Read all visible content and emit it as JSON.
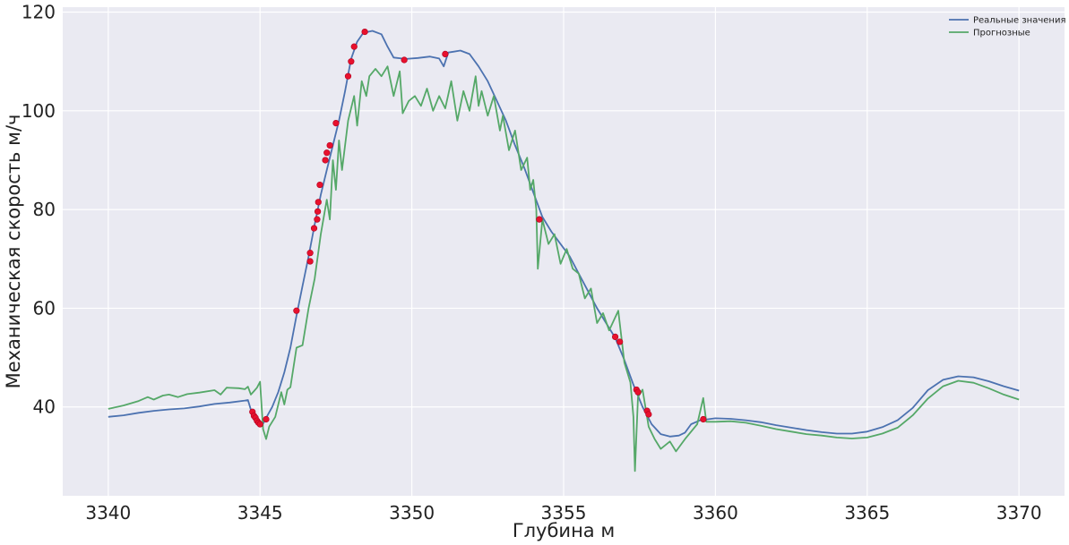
{
  "chart_data": {
    "type": "line",
    "title": "",
    "xlabel": "Глубина м",
    "ylabel": "Механическая скорость м/ч",
    "xlim": [
      3338.5,
      3371.5
    ],
    "ylim": [
      22,
      121
    ],
    "xticks": [
      3340,
      3345,
      3350,
      3355,
      3360,
      3365,
      3370
    ],
    "yticks": [
      40,
      60,
      80,
      100,
      120
    ],
    "grid": true,
    "legend": "top-right",
    "series": [
      {
        "name": "Реальные значения",
        "color": "#4c72b0",
        "points": [
          [
            3340.0,
            38.0
          ],
          [
            3340.5,
            38.3
          ],
          [
            3341.0,
            38.8
          ],
          [
            3341.5,
            39.2
          ],
          [
            3342.0,
            39.5
          ],
          [
            3342.5,
            39.7
          ],
          [
            3343.0,
            40.1
          ],
          [
            3343.5,
            40.6
          ],
          [
            3344.0,
            40.9
          ],
          [
            3344.5,
            41.3
          ],
          [
            3344.6,
            41.4
          ],
          [
            3344.72,
            39.0
          ],
          [
            3344.8,
            37.8
          ],
          [
            3344.9,
            36.8
          ],
          [
            3345.0,
            36.5
          ],
          [
            3345.1,
            36.6
          ],
          [
            3345.2,
            37.8
          ],
          [
            3345.4,
            40.0
          ],
          [
            3345.6,
            43.0
          ],
          [
            3345.8,
            47.0
          ],
          [
            3346.0,
            52.0
          ],
          [
            3346.2,
            58.5
          ],
          [
            3346.4,
            64.5
          ],
          [
            3346.6,
            70.5
          ],
          [
            3346.8,
            77.0
          ],
          [
            3347.0,
            83.0
          ],
          [
            3347.2,
            88.0
          ],
          [
            3347.4,
            93.0
          ],
          [
            3347.6,
            98.0
          ],
          [
            3347.8,
            104.0
          ],
          [
            3348.0,
            110.5
          ],
          [
            3348.2,
            114.0
          ],
          [
            3348.4,
            115.8
          ],
          [
            3348.7,
            116.2
          ],
          [
            3349.0,
            115.5
          ],
          [
            3349.2,
            113.0
          ],
          [
            3349.4,
            110.8
          ],
          [
            3349.8,
            110.5
          ],
          [
            3350.2,
            110.7
          ],
          [
            3350.6,
            111.0
          ],
          [
            3350.9,
            110.6
          ],
          [
            3351.05,
            109.0
          ],
          [
            3351.2,
            111.8
          ],
          [
            3351.6,
            112.2
          ],
          [
            3351.9,
            111.5
          ],
          [
            3352.2,
            109.0
          ],
          [
            3352.5,
            106.0
          ],
          [
            3352.8,
            102.0
          ],
          [
            3353.1,
            98.0
          ],
          [
            3353.4,
            93.0
          ],
          [
            3353.7,
            88.5
          ],
          [
            3354.0,
            83.5
          ],
          [
            3354.3,
            78.5
          ],
          [
            3354.6,
            75.5
          ],
          [
            3354.9,
            73.0
          ],
          [
            3355.2,
            70.5
          ],
          [
            3355.5,
            67.0
          ],
          [
            3355.8,
            63.5
          ],
          [
            3356.1,
            60.0
          ],
          [
            3356.4,
            57.0
          ],
          [
            3356.7,
            54.0
          ],
          [
            3357.0,
            49.5
          ],
          [
            3357.3,
            44.5
          ],
          [
            3357.6,
            40.0
          ],
          [
            3357.9,
            36.5
          ],
          [
            3358.2,
            34.5
          ],
          [
            3358.5,
            34.0
          ],
          [
            3358.8,
            34.2
          ],
          [
            3359.0,
            34.8
          ],
          [
            3359.2,
            36.5
          ],
          [
            3359.5,
            37.3
          ],
          [
            3360.0,
            37.7
          ],
          [
            3360.5,
            37.6
          ],
          [
            3361.0,
            37.3
          ],
          [
            3361.5,
            36.9
          ],
          [
            3362.0,
            36.3
          ],
          [
            3362.5,
            35.8
          ],
          [
            3363.0,
            35.3
          ],
          [
            3363.5,
            34.9
          ],
          [
            3364.0,
            34.6
          ],
          [
            3364.5,
            34.6
          ],
          [
            3365.0,
            35.0
          ],
          [
            3365.5,
            35.9
          ],
          [
            3366.0,
            37.3
          ],
          [
            3366.5,
            39.8
          ],
          [
            3367.0,
            43.4
          ],
          [
            3367.5,
            45.5
          ],
          [
            3368.0,
            46.2
          ],
          [
            3368.5,
            46.0
          ],
          [
            3369.0,
            45.2
          ],
          [
            3369.5,
            44.2
          ],
          [
            3370.0,
            43.3
          ]
        ]
      },
      {
        "name": "Прогнозные",
        "color": "#55a868",
        "points": [
          [
            3340.0,
            39.6
          ],
          [
            3340.5,
            40.3
          ],
          [
            3341.0,
            41.2
          ],
          [
            3341.3,
            42.0
          ],
          [
            3341.5,
            41.5
          ],
          [
            3341.8,
            42.3
          ],
          [
            3342.0,
            42.5
          ],
          [
            3342.3,
            42.0
          ],
          [
            3342.6,
            42.6
          ],
          [
            3343.0,
            42.9
          ],
          [
            3343.5,
            43.4
          ],
          [
            3343.7,
            42.5
          ],
          [
            3343.9,
            43.9
          ],
          [
            3344.3,
            43.8
          ],
          [
            3344.5,
            43.6
          ],
          [
            3344.6,
            44.1
          ],
          [
            3344.7,
            42.5
          ],
          [
            3344.8,
            43.2
          ],
          [
            3344.9,
            43.9
          ],
          [
            3345.0,
            45.1
          ],
          [
            3345.1,
            35.5
          ],
          [
            3345.2,
            33.5
          ],
          [
            3345.3,
            36.0
          ],
          [
            3345.5,
            38.0
          ],
          [
            3345.7,
            43.0
          ],
          [
            3345.8,
            40.5
          ],
          [
            3345.9,
            43.5
          ],
          [
            3346.0,
            44.0
          ],
          [
            3346.2,
            52.0
          ],
          [
            3346.4,
            52.5
          ],
          [
            3346.6,
            60.0
          ],
          [
            3346.8,
            66.0
          ],
          [
            3347.0,
            75.0
          ],
          [
            3347.2,
            82.0
          ],
          [
            3347.3,
            78.0
          ],
          [
            3347.4,
            90.0
          ],
          [
            3347.5,
            84.0
          ],
          [
            3347.6,
            94.0
          ],
          [
            3347.7,
            88.0
          ],
          [
            3347.9,
            98.0
          ],
          [
            3348.1,
            103.0
          ],
          [
            3348.2,
            97.0
          ],
          [
            3348.35,
            106.0
          ],
          [
            3348.5,
            103.0
          ],
          [
            3348.6,
            107.0
          ],
          [
            3348.8,
            108.5
          ],
          [
            3349.0,
            107.0
          ],
          [
            3349.2,
            109.0
          ],
          [
            3349.4,
            103.0
          ],
          [
            3349.6,
            108.0
          ],
          [
            3349.7,
            99.5
          ],
          [
            3349.9,
            102.0
          ],
          [
            3350.1,
            103.0
          ],
          [
            3350.3,
            101.0
          ],
          [
            3350.5,
            104.5
          ],
          [
            3350.7,
            100.0
          ],
          [
            3350.9,
            103.0
          ],
          [
            3351.1,
            100.5
          ],
          [
            3351.3,
            106.0
          ],
          [
            3351.5,
            98.0
          ],
          [
            3351.7,
            104.0
          ],
          [
            3351.9,
            100.0
          ],
          [
            3352.1,
            107.0
          ],
          [
            3352.2,
            101.0
          ],
          [
            3352.3,
            104.0
          ],
          [
            3352.5,
            99.0
          ],
          [
            3352.7,
            103.0
          ],
          [
            3352.9,
            96.0
          ],
          [
            3353.0,
            99.0
          ],
          [
            3353.2,
            92.0
          ],
          [
            3353.4,
            96.0
          ],
          [
            3353.6,
            88.0
          ],
          [
            3353.8,
            90.5
          ],
          [
            3353.9,
            84.0
          ],
          [
            3354.0,
            86.0
          ],
          [
            3354.1,
            80.0
          ],
          [
            3354.15,
            68.0
          ],
          [
            3354.3,
            78.0
          ],
          [
            3354.5,
            73.0
          ],
          [
            3354.7,
            75.0
          ],
          [
            3354.9,
            69.0
          ],
          [
            3355.1,
            72.0
          ],
          [
            3355.3,
            68.0
          ],
          [
            3355.5,
            67.0
          ],
          [
            3355.7,
            62.0
          ],
          [
            3355.9,
            64.0
          ],
          [
            3356.1,
            57.0
          ],
          [
            3356.3,
            59.0
          ],
          [
            3356.5,
            55.5
          ],
          [
            3356.8,
            59.5
          ],
          [
            3357.0,
            49.0
          ],
          [
            3357.2,
            45.0
          ],
          [
            3357.3,
            38.0
          ],
          [
            3357.35,
            27.0
          ],
          [
            3357.45,
            42.0
          ],
          [
            3357.6,
            43.5
          ],
          [
            3357.8,
            36.0
          ],
          [
            3358.0,
            33.5
          ],
          [
            3358.2,
            31.5
          ],
          [
            3358.5,
            33.0
          ],
          [
            3358.7,
            31.0
          ],
          [
            3359.0,
            33.5
          ],
          [
            3359.4,
            36.5
          ],
          [
            3359.6,
            41.8
          ],
          [
            3359.7,
            37.0
          ],
          [
            3360.0,
            37.0
          ],
          [
            3360.5,
            37.1
          ],
          [
            3361.0,
            36.8
          ],
          [
            3361.5,
            36.2
          ],
          [
            3362.0,
            35.5
          ],
          [
            3362.5,
            35.0
          ],
          [
            3363.0,
            34.5
          ],
          [
            3363.5,
            34.2
          ],
          [
            3364.0,
            33.8
          ],
          [
            3364.5,
            33.6
          ],
          [
            3365.0,
            33.8
          ],
          [
            3365.5,
            34.6
          ],
          [
            3366.0,
            35.8
          ],
          [
            3366.5,
            38.3
          ],
          [
            3367.0,
            41.7
          ],
          [
            3367.5,
            44.2
          ],
          [
            3368.0,
            45.3
          ],
          [
            3368.5,
            44.9
          ],
          [
            3369.0,
            43.8
          ],
          [
            3369.5,
            42.5
          ],
          [
            3370.0,
            41.5
          ]
        ]
      }
    ],
    "markers": {
      "color": "#e8112d",
      "points": [
        [
          3344.75,
          39.0
        ],
        [
          3344.8,
          38.2
        ],
        [
          3344.85,
          37.8
        ],
        [
          3344.9,
          37.2
        ],
        [
          3344.95,
          36.8
        ],
        [
          3345.0,
          36.5
        ],
        [
          3345.2,
          37.5
        ],
        [
          3346.2,
          59.5
        ],
        [
          3346.65,
          69.5
        ],
        [
          3346.65,
          71.2
        ],
        [
          3346.78,
          76.2
        ],
        [
          3346.88,
          78.0
        ],
        [
          3346.9,
          79.6
        ],
        [
          3346.92,
          81.5
        ],
        [
          3346.97,
          85.0
        ],
        [
          3347.15,
          90.0
        ],
        [
          3347.2,
          91.5
        ],
        [
          3347.3,
          93.0
        ],
        [
          3347.5,
          97.5
        ],
        [
          3347.9,
          107.0
        ],
        [
          3348.0,
          110.0
        ],
        [
          3348.1,
          113.0
        ],
        [
          3348.45,
          116.0
        ],
        [
          3349.75,
          110.3
        ],
        [
          3351.1,
          111.5
        ],
        [
          3354.2,
          78.0
        ],
        [
          3356.7,
          54.2
        ],
        [
          3356.85,
          53.2
        ],
        [
          3357.4,
          43.5
        ],
        [
          3357.45,
          43.0
        ],
        [
          3357.75,
          39.2
        ],
        [
          3357.8,
          38.5
        ],
        [
          3359.6,
          37.5
        ]
      ]
    }
  }
}
